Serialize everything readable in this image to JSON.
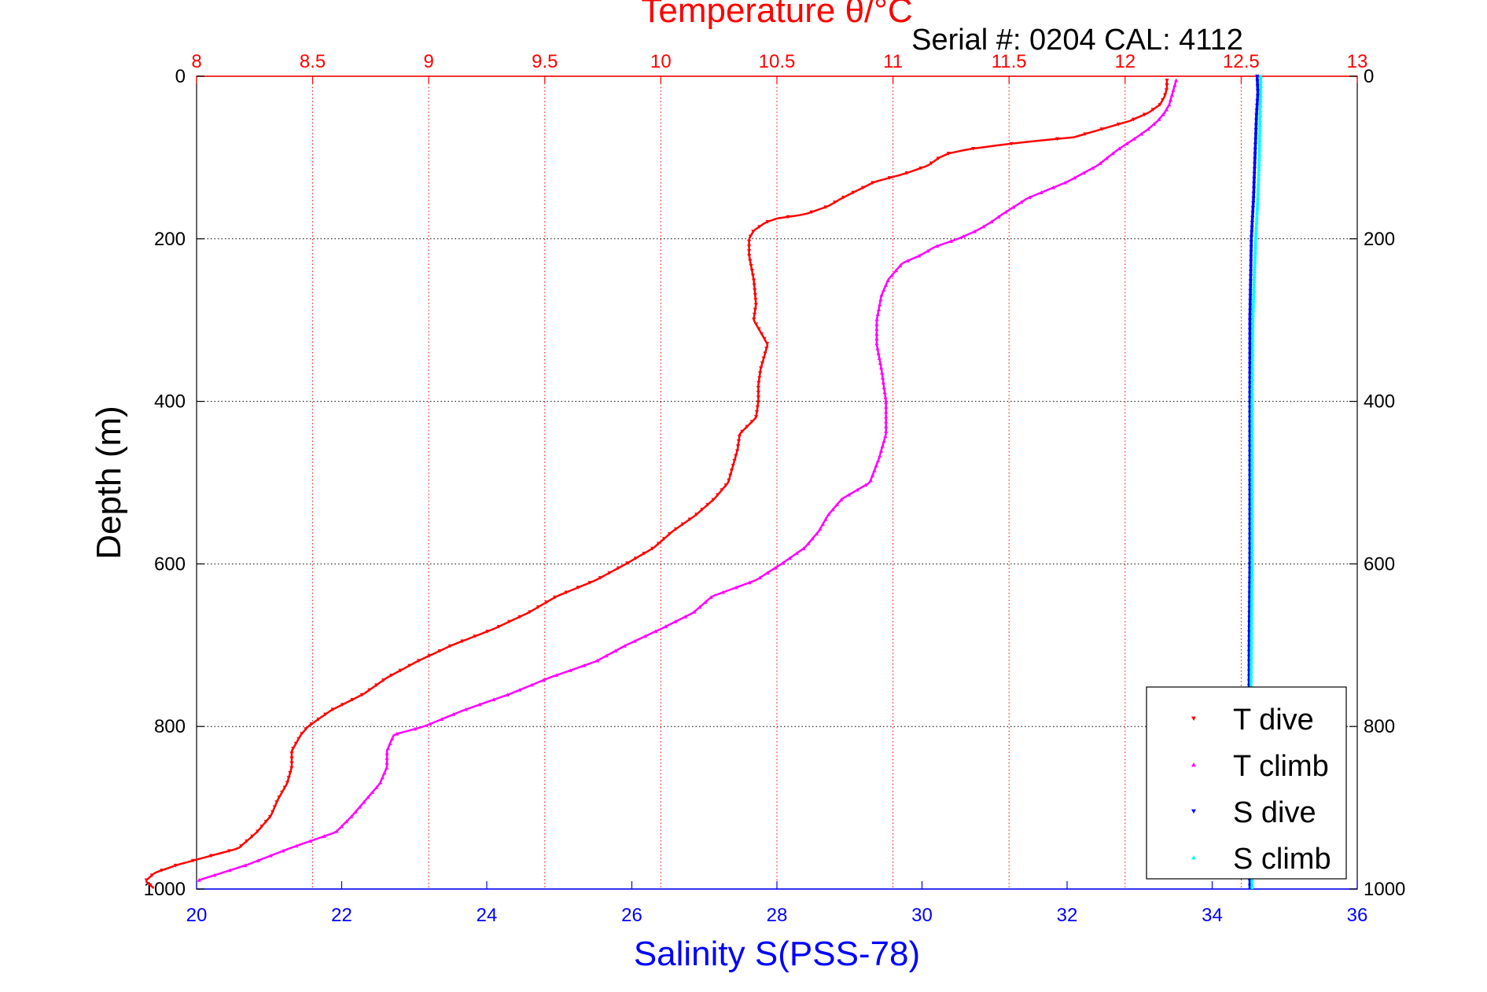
{
  "chart_data": {
    "type": "scatter",
    "title": "Temperature θ/°C",
    "subtitle": "Serial #: 0204  CAL: 4112",
    "ylabel": "Depth (m)",
    "xlabel_bottom": "Salinity S(PSS-78)",
    "ylim": [
      0,
      1000
    ],
    "y_reversed": true,
    "x_top": {
      "label": "Temperature θ/°C",
      "lim": [
        8,
        13
      ],
      "ticks": [
        "8",
        "8.5",
        "9",
        "9.5",
        "10",
        "10.5",
        "11",
        "11.5",
        "12",
        "12.5",
        "13"
      ]
    },
    "x_bottom": {
      "label": "Salinity S(PSS-78)",
      "lim": [
        20,
        36
      ],
      "ticks": [
        "20",
        "22",
        "24",
        "26",
        "28",
        "30",
        "32",
        "34",
        "36"
      ]
    },
    "y_ticks": [
      "0",
      "200",
      "400",
      "600",
      "800",
      "1000"
    ],
    "grid": true,
    "legend_position": "bottom-right",
    "legend": [
      {
        "label": "T dive",
        "color": "#ff0000",
        "marker": "triangle-down"
      },
      {
        "label": "T climb",
        "color": "#ff00ff",
        "marker": "triangle-up"
      },
      {
        "label": "S dive",
        "color": "#0000ff",
        "marker": "triangle-down"
      },
      {
        "label": "S climb",
        "color": "#00ffff",
        "marker": "triangle-up"
      }
    ],
    "series": [
      {
        "name": "T dive",
        "axis": "temperature",
        "color": "#ff0000",
        "depth": [
          5,
          15,
          25,
          35,
          45,
          55,
          65,
          75,
          80,
          85,
          90,
          95,
          100,
          110,
          120,
          130,
          140,
          150,
          160,
          170,
          175,
          180,
          190,
          200,
          220,
          250,
          280,
          300,
          320,
          330,
          340,
          360,
          380,
          400,
          420,
          440,
          460,
          480,
          500,
          520,
          540,
          560,
          580,
          600,
          620,
          640,
          660,
          680,
          700,
          720,
          740,
          760,
          780,
          800,
          810,
          830,
          850,
          870,
          890,
          910,
          930,
          950,
          960,
          970,
          980,
          990,
          1000
        ],
        "values": [
          12.18,
          12.18,
          12.17,
          12.15,
          12.1,
          12.02,
          11.9,
          11.78,
          11.6,
          11.45,
          11.32,
          11.24,
          11.2,
          11.15,
          11.05,
          10.92,
          10.85,
          10.78,
          10.72,
          10.62,
          10.5,
          10.45,
          10.4,
          10.38,
          10.38,
          10.4,
          10.41,
          10.4,
          10.44,
          10.46,
          10.45,
          10.43,
          10.42,
          10.42,
          10.41,
          10.34,
          10.33,
          10.31,
          10.29,
          10.23,
          10.15,
          10.05,
          9.97,
          9.85,
          9.72,
          9.55,
          9.43,
          9.28,
          9.1,
          8.95,
          8.82,
          8.72,
          8.58,
          8.48,
          8.45,
          8.41,
          8.41,
          8.39,
          8.35,
          8.32,
          8.26,
          8.18,
          8.05,
          7.92,
          7.82,
          7.78,
          7.82
        ]
      },
      {
        "name": "T climb",
        "axis": "temperature",
        "color": "#ff00ff",
        "depth": [
          5,
          15,
          25,
          35,
          45,
          55,
          65,
          75,
          90,
          110,
          130,
          150,
          170,
          180,
          190,
          200,
          210,
          220,
          230,
          250,
          270,
          300,
          330,
          360,
          400,
          440,
          470,
          500,
          520,
          540,
          560,
          580,
          600,
          620,
          640,
          660,
          680,
          700,
          720,
          740,
          760,
          780,
          800,
          810,
          830,
          850,
          870,
          890,
          910,
          930,
          950,
          970,
          990
        ],
        "values": [
          12.22,
          12.21,
          12.2,
          12.19,
          12.17,
          12.14,
          12.1,
          12.05,
          11.97,
          11.88,
          11.75,
          11.58,
          11.47,
          11.42,
          11.36,
          11.28,
          11.18,
          11.12,
          11.04,
          10.98,
          10.95,
          10.93,
          10.93,
          10.95,
          10.97,
          10.97,
          10.94,
          10.9,
          10.78,
          10.72,
          10.68,
          10.62,
          10.52,
          10.41,
          10.22,
          10.14,
          10.0,
          9.85,
          9.72,
          9.52,
          9.35,
          9.15,
          8.98,
          8.85,
          8.82,
          8.82,
          8.79,
          8.73,
          8.67,
          8.6,
          8.4,
          8.22,
          8.0
        ]
      },
      {
        "name": "S dive",
        "axis": "salinity",
        "color": "#0000ff",
        "depth": [
          0,
          20,
          50,
          100,
          150,
          200,
          300,
          400,
          500,
          600,
          700,
          800,
          900,
          1000
        ],
        "values": [
          34.62,
          34.63,
          34.61,
          34.59,
          34.57,
          34.54,
          34.52,
          34.52,
          34.52,
          34.52,
          34.51,
          34.51,
          34.52,
          34.52
        ]
      },
      {
        "name": "S climb",
        "axis": "salinity",
        "color": "#00ffff",
        "depth": [
          0,
          20,
          50,
          100,
          150,
          200,
          300,
          400,
          500,
          600,
          700,
          800,
          900,
          1000
        ],
        "values": [
          34.67,
          34.67,
          34.66,
          34.65,
          34.63,
          34.6,
          34.56,
          34.55,
          34.55,
          34.55,
          34.54,
          34.53,
          34.54,
          34.55
        ]
      }
    ]
  }
}
